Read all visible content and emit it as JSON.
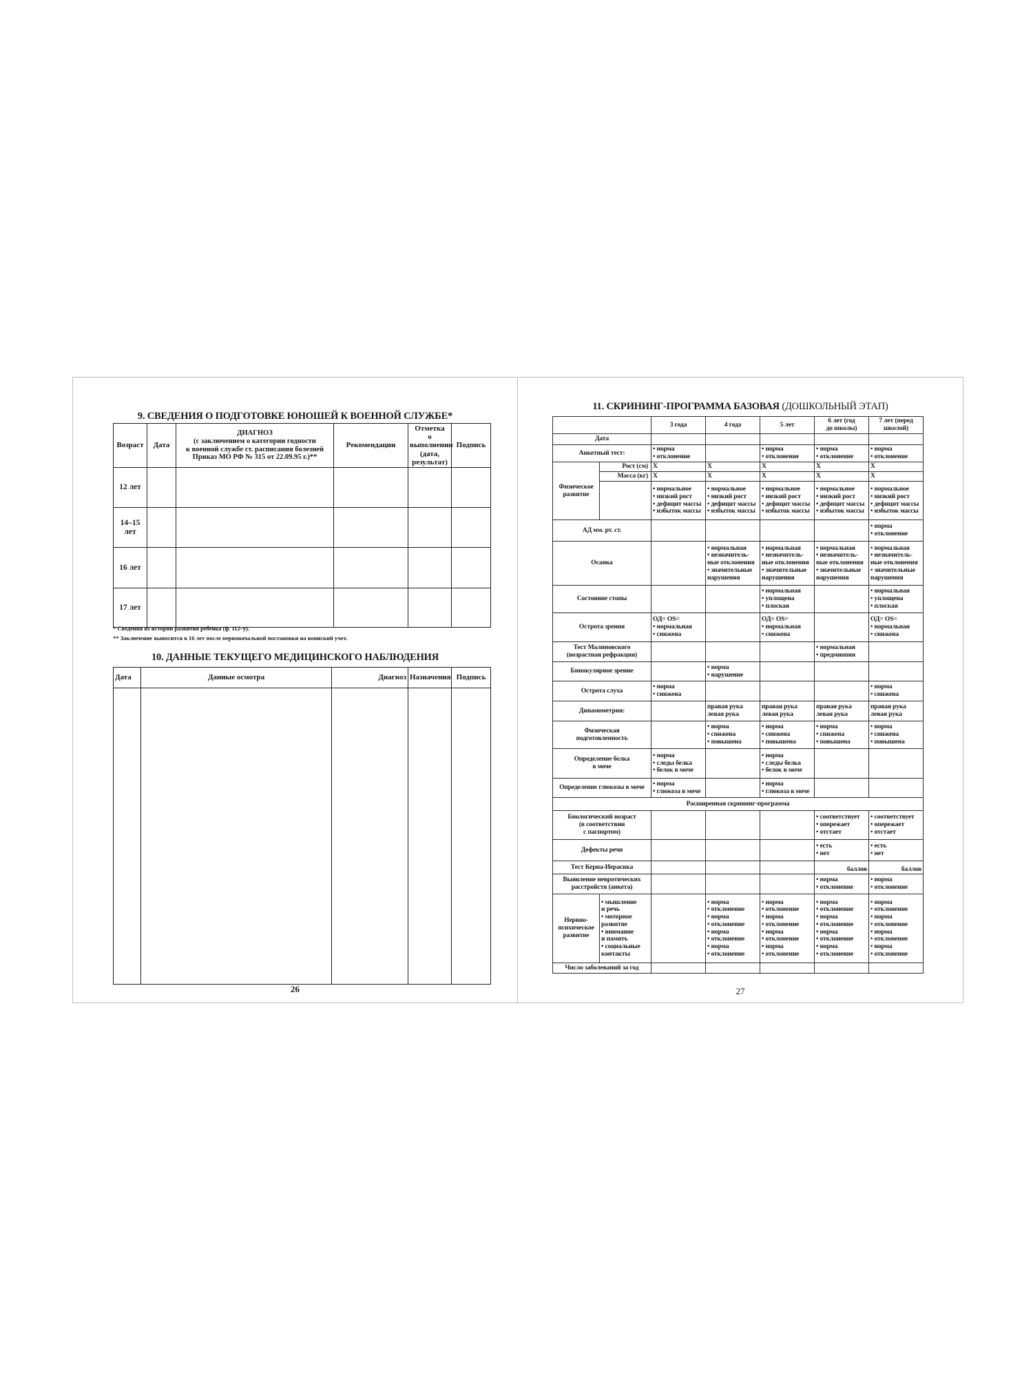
{
  "left_page": {
    "section9": {
      "title": "9. СВЕДЕНИЯ О ПОДГОТОВКЕ ЮНОШЕЙ К ВОЕННОЙ СЛУЖБЕ*",
      "headers": [
        "Возраст",
        "Дата",
        "ДИАГНОЗ\n(с заключением о категории годности\nк военной службе ст. расписания болезней\nПриказ МО РФ № 315 от 22.09.95 г.)**",
        "Рекомендации",
        "Отметка\nо выполнении\n(дата, результат)",
        "Подпись"
      ],
      "rows": [
        "12 лет",
        "14–15\nлет",
        "16 лет",
        "17 лет"
      ],
      "footnotes": [
        "* Сведения из истории развития ребенка (ф. 112–у).",
        "** Заключение выносится в 16 лет после первоначальной постановки на воинский учет."
      ]
    },
    "section10": {
      "title": "10. ДАННЫЕ ТЕКУЩЕГО МЕДИЦИНСКОГО НАБЛЮДЕНИЯ",
      "headers": [
        "Дата",
        "Данные осмотра",
        "Диагноз",
        "Назначения",
        "Подпись"
      ]
    },
    "page_number": "26"
  },
  "right_page": {
    "section11": {
      "title_bold": "11. СКРИНИНГ-ПРОГРАММА БАЗОВАЯ",
      "title_light": " (ДОШКОЛЬНЫЙ ЭТАП)",
      "headers": [
        "",
        "3 года",
        "4 года",
        "5 лет",
        "6 лет (год\nдо школы)",
        "7 лет (перед\nшколой)"
      ],
      "rows": [
        {
          "label": "Дата",
          "cells": [
            "",
            "",
            "",
            "",
            ""
          ]
        },
        {
          "label": "Анкетный тест:",
          "cells": [
            "• норма\n• отклонение",
            "",
            "• норма\n• отклонение",
            "• норма\n• отклонение",
            "• норма\n• отклонение"
          ]
        },
        {
          "label": "Физическое\nразвитие",
          "sub": "Рост (см)",
          "cells": [
            "X",
            "X",
            "X",
            "X",
            "X"
          ]
        },
        {
          "sub": "Масса (кг)",
          "cells": [
            "X",
            "X",
            "X",
            "X",
            "X"
          ]
        },
        {
          "sub": "",
          "cells": [
            "• нормальное\n• низкий рост\n• дефицит массы\n• избыток массы",
            "• нормальное\n• низкий рост\n• дефицит массы\n• избыток массы",
            "• нормальное\n• низкий рост\n• дефицит массы\n• избыток массы",
            "• нормальное\n• низкий рост\n• дефицит массы\n• избыток массы",
            "• нормальное\n• низкий рост\n• дефицит массы\n• избыток массы"
          ]
        },
        {
          "label": "АД мм. рт. ст.",
          "cells": [
            "",
            "",
            "",
            "",
            "• норма\n• отклонение"
          ]
        },
        {
          "label": "Осанка",
          "cells": [
            "",
            "• нормальная\n• незначитель-\nные отклонения\n• значительные\nнарушения",
            "• нормальная\n• незначитель-\nные отклонения\n• значительные\nнарушения",
            "• нормальная\n• незначитель-\nные отклонения\n• значительные\nнарушения",
            "• нормальная\n• незначитель-\nные отклонения\n• значительные\nнарушения"
          ]
        },
        {
          "label": "Состояние стопы",
          "cells": [
            "",
            "",
            "• нормальная\n• уплощена\n• плоская",
            "",
            "• нормальная\n• уплощена\n• плоская"
          ]
        },
        {
          "label": "Острота зрения",
          "cells": [
            "ОД= OS=\n• нормальная\n• снижена",
            "",
            "ОД= OS=\n• нормальная\n• снижена",
            "",
            "ОД= OS=\n• нормальная\n• снижена"
          ]
        },
        {
          "label": "Тест Малиновского\n(возрастная рефракция)",
          "cells": [
            "",
            "",
            "",
            "• нормальная\n• предмиопия",
            ""
          ]
        },
        {
          "label": "Бинокулярное зрение",
          "cells": [
            "",
            "• норма\n• нарушение",
            "",
            "",
            ""
          ]
        },
        {
          "label": "Острота слуха",
          "cells": [
            "• норма\n• снижена",
            "",
            "",
            "",
            "• норма\n• снижена"
          ]
        },
        {
          "label": "Динамометрия:",
          "cells": [
            "",
            "правая рука\nлевая рука",
            "правая рука\nлевая рука",
            "правая рука\nлевая рука",
            "правая рука\nлевая рука"
          ]
        },
        {
          "label": "Физическая\nподготовленность",
          "cells": [
            "",
            "• норма\n• снижена\n• повышена",
            "• норма\n• снижена\n• повышена",
            "• норма\n• снижена\n• повышена",
            "• норма\n• снижена\n• повышена"
          ]
        },
        {
          "label": "Определение белка\nв моче",
          "cells": [
            "• норма\n• следы белка\n• белок в моче",
            "",
            "• норма\n• следы белка\n• белок в моче",
            "",
            ""
          ]
        },
        {
          "label": "Определение глюкозы в моче",
          "cells": [
            "• норма\n• глюкоза в моче",
            "",
            "• норма\n• глюкоза в моче",
            "",
            ""
          ]
        },
        {
          "span": "Расширенная скрининг-программа"
        },
        {
          "label": "Биологический возраст\n(в соответствии\nс паспортом)",
          "cells": [
            "",
            "",
            "",
            "• соответствует\n• опережает\n• отстает",
            "• соответствует\n• опережает\n• отстает"
          ]
        },
        {
          "label": "Дефекты речи",
          "cells": [
            "",
            "",
            "",
            "• есть\n• нет",
            "• есть\n• нет"
          ]
        },
        {
          "label": "Тест Керна-Иерасика",
          "score": true,
          "cells": [
            "",
            "",
            "",
            "баллов",
            "баллов"
          ]
        },
        {
          "label": "Выявление невротических\nрасстройств (анкета)",
          "cells": [
            "",
            "",
            "",
            "• норма\n• отклонение",
            "• норма\n• отклонение"
          ]
        },
        {
          "label": "Нервно-\nпсихическое\nразвитие",
          "sub": "• мышление\nи речь\n• моторное\nразвитие\n• внимание\nи память\n• социальные\nконтакты",
          "cells": [
            "",
            "• норма\n• отклонение\n• норма\n• отклонение\n• норма\n• отклонение\n• норма\n• отклонение",
            "• норма\n• отклонение\n• норма\n• отклонение\n• норма\n• отклонение\n• норма\n• отклонение",
            "• норма\n• отклонение\n• норма\n• отклонение\n• норма\n• отклонение\n• норма\n• отклонение",
            "• норма\n• отклонение\n• норма\n• отклонение\n• норма\n• отклонение\n• норма\n• отклонение"
          ]
        },
        {
          "label": "Число заболеваний за год",
          "cells": [
            "",
            "",
            "",
            "",
            ""
          ]
        }
      ]
    },
    "page_number": "27"
  }
}
